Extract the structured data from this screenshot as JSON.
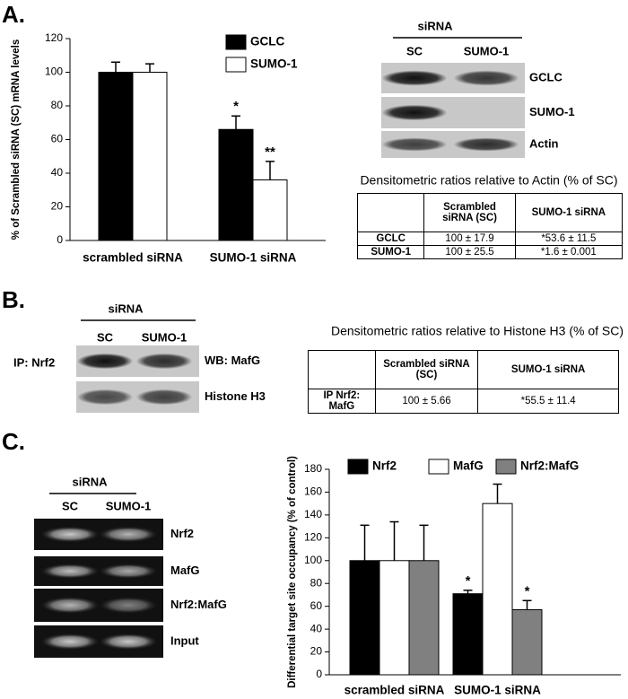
{
  "panels": {
    "a": "A.",
    "b": "B.",
    "c": "C."
  },
  "chart_data": [
    {
      "type": "bar",
      "y_label": "% of Scrambled siRNA (SC) mRNA levels",
      "categories": [
        "scrambled siRNA",
        "SUMO-1 siRNA"
      ],
      "series": [
        {
          "name": "GCLC",
          "color": "#000000",
          "values": [
            100,
            66
          ],
          "errors": [
            6,
            8
          ],
          "marks": [
            null,
            "*"
          ]
        },
        {
          "name": "SUMO-1",
          "color": "#ffffff",
          "values": [
            100,
            36
          ],
          "errors": [
            5,
            11
          ],
          "marks": [
            null,
            "**"
          ]
        }
      ],
      "ylim": [
        0,
        120
      ],
      "yticks": [
        0,
        20,
        40,
        60,
        80,
        100,
        120
      ]
    },
    {
      "type": "bar",
      "y_label": "Differential target site occupancy (% of control)",
      "categories": [
        "scrambled siRNA",
        "SUMO-1 siRNA"
      ],
      "series": [
        {
          "name": "Nrf2",
          "color": "#000000",
          "values": [
            100,
            71
          ],
          "errors": [
            31,
            3
          ],
          "marks": [
            null,
            "*"
          ]
        },
        {
          "name": "MafG",
          "color": "#ffffff",
          "values": [
            100,
            150
          ],
          "errors": [
            34,
            17
          ]
        },
        {
          "name": "Nrf2:MafG",
          "color": "#808080",
          "values": [
            100,
            57
          ],
          "errors": [
            31,
            8
          ],
          "marks": [
            null,
            "*"
          ]
        }
      ],
      "ylim": [
        0,
        180
      ],
      "yticks": [
        0,
        20,
        40,
        60,
        80,
        100,
        120,
        140,
        160,
        180
      ]
    }
  ],
  "blot_a": {
    "header": "siRNA",
    "lanes": [
      "SC",
      "SUMO-1"
    ],
    "rows": [
      "GCLC",
      "SUMO-1",
      "Actin"
    ]
  },
  "table_a": {
    "title": "Densitometric ratios relative to Actin (% of SC)",
    "columns": [
      "Scrambled siRNA (SC)",
      "SUMO-1 siRNA"
    ],
    "rows": [
      [
        "GCLC",
        "100 ± 17.9",
        "*53.6 ± 11.5"
      ],
      [
        "SUMO-1",
        "100 ± 25.5",
        "*1.6 ± 0.001"
      ]
    ]
  },
  "blot_b": {
    "header": "siRNA",
    "lanes": [
      "SC",
      "SUMO-1"
    ],
    "ip": "IP: Nrf2",
    "rows": [
      "WB: MafG",
      "Histone H3"
    ]
  },
  "table_b": {
    "title": "Densitometric ratios relative to Histone H3 (% of SC)",
    "columns": [
      "Scrambled siRNA (SC)",
      "SUMO-1 siRNA"
    ],
    "rows": [
      [
        "IP Nrf2: MafG",
        "100 ± 5.66",
        "*55.5 ± 11.4"
      ]
    ]
  },
  "gel_c": {
    "header": "siRNA",
    "lanes": [
      "SC",
      "SUMO-1"
    ],
    "rows": [
      "Nrf2",
      "MafG",
      "Nrf2:MafG",
      "Input"
    ]
  }
}
